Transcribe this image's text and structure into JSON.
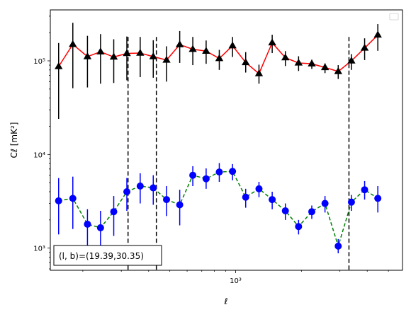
{
  "chart_data": {
    "type": "scatter",
    "title": "",
    "xlabel": "ℓ",
    "ylabel": "Cℓ [mK²]",
    "x_scale": "log",
    "y_scale": "log",
    "xlim": [
      142,
      5800
    ],
    "ylim": [
      580,
      350000
    ],
    "x_ticks": [
      {
        "value": 1000,
        "label": "10³"
      }
    ],
    "y_ticks": [
      {
        "value": 1000,
        "label": "10³"
      },
      {
        "value": 10000,
        "label": "10⁴"
      },
      {
        "value": 100000,
        "label": "10⁵"
      }
    ],
    "vlines": [
      322,
      434,
      3300
    ],
    "legend": {
      "location": "upper right",
      "entries": []
    },
    "annotation": "(l, b)=(19.39,30.35)",
    "series": [
      {
        "color": "#ff0000",
        "marker": "triangle",
        "marker_color": "#000000",
        "errorbar_color": "#000000",
        "linestyle": "solid",
        "points": [
          {
            "x": 155,
            "y": 87000,
            "lo": 24000,
            "hi": 155000
          },
          {
            "x": 180,
            "y": 150000,
            "lo": 51000,
            "hi": 255000
          },
          {
            "x": 210,
            "y": 111000,
            "lo": 52000,
            "hi": 185000
          },
          {
            "x": 241,
            "y": 125000,
            "lo": 57000,
            "hi": 193000
          },
          {
            "x": 277,
            "y": 110000,
            "lo": 58000,
            "hi": 170000
          },
          {
            "x": 318,
            "y": 120000,
            "lo": 62000,
            "hi": 182000
          },
          {
            "x": 366,
            "y": 121000,
            "lo": 67000,
            "hi": 180000
          },
          {
            "x": 420,
            "y": 111000,
            "lo": 66000,
            "hi": 166000
          },
          {
            "x": 483,
            "y": 102000,
            "lo": 60000,
            "hi": 143000
          },
          {
            "x": 555,
            "y": 149000,
            "lo": 95000,
            "hi": 208000
          },
          {
            "x": 637,
            "y": 133000,
            "lo": 90000,
            "hi": 180000
          },
          {
            "x": 733,
            "y": 127000,
            "lo": 93000,
            "hi": 165000
          },
          {
            "x": 842,
            "y": 106000,
            "lo": 80000,
            "hi": 131000
          },
          {
            "x": 968,
            "y": 145000,
            "lo": 110000,
            "hi": 180000
          },
          {
            "x": 1112,
            "y": 96000,
            "lo": 75000,
            "hi": 124000
          },
          {
            "x": 1279,
            "y": 73000,
            "lo": 57000,
            "hi": 91000
          },
          {
            "x": 1470,
            "y": 156000,
            "lo": 121000,
            "hi": 190000
          },
          {
            "x": 1689,
            "y": 108000,
            "lo": 88000,
            "hi": 127000
          },
          {
            "x": 1941,
            "y": 95000,
            "lo": 78000,
            "hi": 112000
          },
          {
            "x": 2231,
            "y": 93000,
            "lo": 82000,
            "hi": 103000
          },
          {
            "x": 2564,
            "y": 85000,
            "lo": 74000,
            "hi": 94000
          },
          {
            "x": 2947,
            "y": 77000,
            "lo": 64000,
            "hi": 90000
          },
          {
            "x": 3387,
            "y": 100000,
            "lo": 80000,
            "hi": 118000
          },
          {
            "x": 3892,
            "y": 137000,
            "lo": 102000,
            "hi": 174000
          },
          {
            "x": 4473,
            "y": 189000,
            "lo": 128000,
            "hi": 247000
          }
        ]
      },
      {
        "color": "#008000",
        "marker": "circle",
        "marker_color": "#0000ff",
        "errorbar_color": "#0000ff",
        "linestyle": "dashed",
        "points": [
          {
            "x": 155,
            "y": 3200,
            "lo": 1400,
            "hi": 5600
          },
          {
            "x": 180,
            "y": 3400,
            "lo": 1600,
            "hi": 5800
          },
          {
            "x": 210,
            "y": 1800,
            "lo": 1000,
            "hi": 2600
          },
          {
            "x": 241,
            "y": 1650,
            "lo": 1000,
            "hi": 2500
          },
          {
            "x": 277,
            "y": 2450,
            "lo": 1350,
            "hi": 3600
          },
          {
            "x": 318,
            "y": 4000,
            "lo": 2500,
            "hi": 5600
          },
          {
            "x": 366,
            "y": 4600,
            "lo": 3000,
            "hi": 6300
          },
          {
            "x": 420,
            "y": 4400,
            "lo": 2900,
            "hi": 6000
          },
          {
            "x": 483,
            "y": 3300,
            "lo": 2200,
            "hi": 4600
          },
          {
            "x": 555,
            "y": 2900,
            "lo": 1750,
            "hi": 4200
          },
          {
            "x": 637,
            "y": 6000,
            "lo": 4600,
            "hi": 7500
          },
          {
            "x": 733,
            "y": 5500,
            "lo": 4300,
            "hi": 7100
          },
          {
            "x": 842,
            "y": 6500,
            "lo": 5100,
            "hi": 8100
          },
          {
            "x": 968,
            "y": 6600,
            "lo": 5300,
            "hi": 7900
          },
          {
            "x": 1112,
            "y": 3500,
            "lo": 2700,
            "hi": 4300
          },
          {
            "x": 1279,
            "y": 4300,
            "lo": 3500,
            "hi": 5100
          },
          {
            "x": 1470,
            "y": 3300,
            "lo": 2600,
            "hi": 4000
          },
          {
            "x": 1689,
            "y": 2500,
            "lo": 2000,
            "hi": 3000
          },
          {
            "x": 1941,
            "y": 1700,
            "lo": 1400,
            "hi": 2000
          },
          {
            "x": 2231,
            "y": 2450,
            "lo": 2050,
            "hi": 2850
          },
          {
            "x": 2564,
            "y": 3000,
            "lo": 2400,
            "hi": 3600
          },
          {
            "x": 2947,
            "y": 1050,
            "lo": 880,
            "hi": 1250
          },
          {
            "x": 3387,
            "y": 3100,
            "lo": 2500,
            "hi": 3700
          },
          {
            "x": 3892,
            "y": 4200,
            "lo": 3300,
            "hi": 5200
          },
          {
            "x": 4473,
            "y": 3400,
            "lo": 2400,
            "hi": 4600
          }
        ]
      }
    ]
  }
}
